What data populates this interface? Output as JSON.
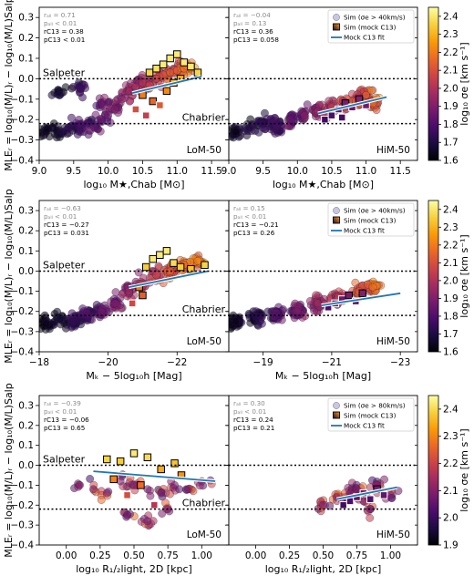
{
  "figure": {
    "colormap": [
      "#000004",
      "#1b0c41",
      "#4a0c6b",
      "#781c6d",
      "#a52c60",
      "#cf4446",
      "#ed6925",
      "#fb9b06",
      "#f7d13d",
      "#fcffa4"
    ],
    "fit_color": "#1f77b4",
    "ylabel": "MLE$_r$ = log$_{10}$(M/L)$_r$ − log$_{10}$(M/L)$_{\\rm Salp}$",
    "ylabel_display": "MLEᵣ = log₁₀(M/L)ᵣ − log₁₀(M/L)Salp",
    "salpeter_label": "Salpeter",
    "chabrier_label": "Chabrier",
    "salpeter_level": 0.0,
    "chabrier_level": -0.22,
    "colorbar_label": "log₁₀ σe [km s⁻¹]"
  },
  "rows": [
    {
      "xlabel": "log₁₀ M★,Chab [M⊙]",
      "xlim": [
        9.0,
        11.75
      ],
      "xticks": [
        "9.0",
        "9.5",
        "10.0",
        "10.5",
        "11.0",
        "11.5"
      ],
      "xtick_values": [
        9.0,
        9.5,
        10.0,
        10.5,
        11.0,
        11.5
      ],
      "ylim": [
        -0.4,
        0.35
      ],
      "yticks": [
        "0.3",
        "0.2",
        "0.1",
        "0.0",
        "−0.1",
        "−0.2",
        "−0.3",
        "−0.4"
      ],
      "ytick_values": [
        0.3,
        0.2,
        0.1,
        0.0,
        -0.1,
        -0.2,
        -0.3,
        -0.4
      ],
      "colorbar": {
        "min": 1.6,
        "max": 2.45,
        "ticks": [
          "2.4",
          "2.3",
          "2.2",
          "2.1",
          "2.0",
          "1.9",
          "1.8",
          "1.7",
          "1.6"
        ],
        "tick_values": [
          2.4,
          2.3,
          2.2,
          2.1,
          2.0,
          1.9,
          1.8,
          1.7,
          1.6
        ]
      },
      "legend": {
        "sim": "Sim (σe > 40km/s)",
        "mock": "Sim (mock C13)",
        "fit": "Mock C13 fit"
      },
      "panels": [
        {
          "name": "LoM-50",
          "stats": [
            "rₐₗₗ = 0.71",
            "pₐₗₗ < 0.01",
            "rC13 = 0.38",
            "pC13 < 0.01"
          ],
          "fit": {
            "x": [
              10.35,
              11.35
            ],
            "y": [
              -0.07,
              0.01
            ]
          }
        },
        {
          "name": "HiM-50",
          "stats": [
            "rₐₗₗ = −0.04",
            "pₐₗₗ = 0.13",
            "rC13 = 0.36",
            "pC13 = 0.058"
          ],
          "fit": {
            "x": [
              10.3,
              11.3
            ],
            "y": [
              -0.17,
              -0.09
            ]
          }
        }
      ]
    },
    {
      "xlabel": "Mₖ − 5log₁₀h [Mag]",
      "xlim": [
        -18.0,
        -23.5
      ],
      "xticks": [
        "−18",
        "−20",
        "−22"
      ],
      "xtick_values": [
        -18,
        -20,
        -22
      ],
      "xticks_right": [
        "−19",
        "−21",
        "−23"
      ],
      "xtick_values_right": [
        -19,
        -21,
        -23
      ],
      "ylim": [
        -0.4,
        0.35
      ],
      "yticks": [
        "0.3",
        "0.2",
        "0.1",
        "0.0",
        "−0.1",
        "−0.2",
        "−0.3",
        "−0.4"
      ],
      "ytick_values": [
        0.3,
        0.2,
        0.1,
        0.0,
        -0.1,
        -0.2,
        -0.3,
        -0.4
      ],
      "colorbar": {
        "min": 1.6,
        "max": 2.45,
        "ticks": [
          "2.4",
          "2.3",
          "2.2",
          "2.1",
          "2.0",
          "1.9",
          "1.8",
          "1.7",
          "1.6"
        ],
        "tick_values": [
          2.4,
          2.3,
          2.2,
          2.1,
          2.0,
          1.9,
          1.8,
          1.7,
          1.6
        ]
      },
      "legend": {
        "sim": "Sim (σe > 40km/s)",
        "mock": "Sim (mock C13)",
        "fit": "Mock C13 fit"
      },
      "panels": [
        {
          "name": "LoM-50",
          "stats": [
            "rₐₗₗ = −0.63",
            "pₐₗₗ < 0.01",
            "rC13 = −0.27",
            "pC13 = 0.031"
          ],
          "fit": {
            "x": [
              -20.6,
              -22.9
            ],
            "y": [
              -0.08,
              0.0
            ]
          }
        },
        {
          "name": "HiM-50",
          "stats": [
            "rₐₗₗ = 0.15",
            "pₐₗₗ < 0.01",
            "rC13 = −0.21",
            "pC13 = 0.26"
          ],
          "fit": {
            "x": [
              -20.7,
              -23.0
            ],
            "y": [
              -0.17,
              -0.11
            ]
          }
        }
      ]
    },
    {
      "xlabel": "log₁₀ R₁/₂light, 2D [kpc]",
      "xlim": [
        -0.2,
        1.2
      ],
      "xticks": [
        "0.00",
        "0.25",
        "0.50",
        "0.75",
        "1.00"
      ],
      "xtick_values": [
        0.0,
        0.25,
        0.5,
        0.75,
        1.0
      ],
      "ylim": [
        -0.4,
        0.35
      ],
      "yticks": [
        "0.3",
        "0.2",
        "0.1",
        "0.0",
        "−0.1",
        "−0.2",
        "−0.3",
        "−0.4"
      ],
      "ytick_values": [
        0.3,
        0.2,
        0.1,
        0.0,
        -0.1,
        -0.2,
        -0.3,
        -0.4
      ],
      "colorbar": {
        "min": 1.9,
        "max": 2.45,
        "ticks": [
          "2.4",
          "2.3",
          "2.2",
          "2.1",
          "2.0",
          "1.9"
        ],
        "tick_values": [
          2.4,
          2.3,
          2.2,
          2.1,
          2.0,
          1.9
        ]
      },
      "legend": {
        "sim": "Sim (σe > 80km/s)",
        "mock": "Sim (mock C13)",
        "fit": "Mock C13 fit"
      },
      "panels": [
        {
          "name": "LoM-50",
          "stats": [
            "rₐₗₗ = −0.39",
            "pₐₗₗ < 0.01",
            "rC13 = −0.06",
            "pC13 = 0.65"
          ],
          "fit": {
            "x": [
              0.2,
              1.1
            ],
            "y": [
              -0.03,
              -0.08
            ]
          }
        },
        {
          "name": "HiM-50",
          "stats": [
            "rₐₗₗ = 0.30",
            "pₐₗₗ < 0.01",
            "rC13 = 0.24",
            "pC13 = 0.21"
          ],
          "fit": {
            "x": [
              0.6,
              1.05
            ],
            "y": [
              -0.17,
              -0.11
            ]
          }
        }
      ]
    }
  ],
  "chart_data": [
    {
      "type": "scatter",
      "panel": "row1-LoM-50",
      "xlabel": "log10 M*,Chab [Msun]",
      "ylabel": "MLEr",
      "xlim": [
        9.0,
        11.75
      ],
      "ylim": [
        -0.4,
        0.35
      ],
      "series": [
        {
          "name": "Sim (σe > 40km/s)",
          "points": [
            [
              9.1,
              -0.26
            ],
            [
              9.2,
              -0.24
            ],
            [
              9.3,
              -0.27
            ],
            [
              9.4,
              -0.25
            ],
            [
              9.5,
              -0.23
            ],
            [
              9.6,
              -0.26
            ],
            [
              9.7,
              -0.22
            ],
            [
              9.8,
              -0.24
            ],
            [
              9.9,
              -0.2
            ],
            [
              10.0,
              -0.18
            ],
            [
              10.1,
              -0.15
            ],
            [
              10.2,
              -0.1
            ],
            [
              10.3,
              -0.06
            ],
            [
              10.4,
              -0.04
            ],
            [
              10.5,
              -0.02
            ],
            [
              10.6,
              -0.03
            ],
            [
              10.7,
              0.0
            ],
            [
              10.8,
              0.02
            ],
            [
              10.9,
              0.03
            ],
            [
              11.0,
              0.04
            ],
            [
              11.1,
              0.05
            ],
            [
              11.2,
              0.06
            ],
            [
              9.3,
              -0.08
            ],
            [
              9.6,
              -0.05
            ],
            [
              9.9,
              -0.12
            ]
          ]
        },
        {
          "name": "Sim (mock C13)",
          "points": [
            [
              10.4,
              -0.15
            ],
            [
              10.5,
              -0.08
            ],
            [
              10.6,
              0.03
            ],
            [
              10.7,
              0.05
            ],
            [
              10.8,
              0.07
            ],
            [
              10.9,
              0.1
            ],
            [
              11.0,
              0.12
            ],
            [
              11.1,
              0.08
            ],
            [
              11.2,
              0.06
            ],
            [
              11.3,
              0.03
            ],
            [
              10.55,
              -0.18
            ],
            [
              10.65,
              -0.11
            ],
            [
              10.75,
              -0.13
            ],
            [
              10.85,
              -0.06
            ],
            [
              10.95,
              -0.02
            ],
            [
              11.05,
              0.0
            ]
          ]
        }
      ]
    },
    {
      "type": "scatter",
      "panel": "row1-HiM-50",
      "xlabel": "log10 M*,Chab [Msun]",
      "ylabel": "MLEr",
      "xlim": [
        9.0,
        11.75
      ],
      "ylim": [
        -0.4,
        0.35
      ],
      "series": [
        {
          "name": "Sim (σe > 40km/s)",
          "points": [
            [
              9.1,
              -0.26
            ],
            [
              9.3,
              -0.24
            ],
            [
              9.5,
              -0.22
            ],
            [
              9.7,
              -0.23
            ],
            [
              9.9,
              -0.2
            ],
            [
              10.1,
              -0.18
            ],
            [
              10.3,
              -0.16
            ],
            [
              10.5,
              -0.14
            ],
            [
              10.7,
              -0.12
            ],
            [
              10.9,
              -0.1
            ],
            [
              11.0,
              -0.08
            ],
            [
              11.1,
              -0.12
            ]
          ]
        },
        {
          "name": "Sim (mock C13)",
          "points": [
            [
              10.4,
              -0.2
            ],
            [
              10.5,
              -0.18
            ],
            [
              10.6,
              -0.15
            ],
            [
              10.7,
              -0.12
            ],
            [
              10.8,
              -0.14
            ],
            [
              10.9,
              -0.1
            ],
            [
              11.0,
              -0.13
            ],
            [
              10.65,
              -0.19
            ]
          ]
        }
      ]
    },
    {
      "type": "scatter",
      "panel": "row2-LoM-50",
      "xlabel": "MK - 5log10h [Mag]",
      "ylabel": "MLEr",
      "xlim": [
        -18.0,
        -23.5
      ],
      "ylim": [
        -0.4,
        0.35
      ],
      "series": [
        {
          "name": "Sim (σe > 40km/s)",
          "points": [
            [
              -18.2,
              -0.26
            ],
            [
              -18.6,
              -0.24
            ],
            [
              -19.0,
              -0.25
            ],
            [
              -19.4,
              -0.22
            ],
            [
              -19.8,
              -0.2
            ],
            [
              -20.2,
              -0.16
            ],
            [
              -20.6,
              -0.1
            ],
            [
              -21.0,
              -0.06
            ],
            [
              -21.4,
              -0.02
            ],
            [
              -21.8,
              0.0
            ],
            [
              -22.2,
              0.03
            ],
            [
              -22.6,
              0.05
            ]
          ]
        },
        {
          "name": "Sim (mock C13)",
          "points": [
            [
              -20.7,
              -0.16
            ],
            [
              -20.9,
              -0.08
            ],
            [
              -21.1,
              0.02
            ],
            [
              -21.3,
              0.06
            ],
            [
              -21.5,
              0.08
            ],
            [
              -21.7,
              0.1
            ],
            [
              -21.9,
              0.04
            ],
            [
              -22.1,
              0.02
            ],
            [
              -22.4,
              0.01
            ],
            [
              -22.8,
              0.03
            ],
            [
              -21.0,
              -0.12
            ]
          ]
        }
      ]
    },
    {
      "type": "scatter",
      "panel": "row2-HiM-50",
      "xlabel": "MK - 5log10h [Mag]",
      "ylabel": "MLEr",
      "xlim": [
        -18.0,
        -23.5
      ],
      "ylim": [
        -0.4,
        0.35
      ],
      "series": [
        {
          "name": "Sim (σe > 40km/s)",
          "points": [
            [
              -18.2,
              -0.25
            ],
            [
              -18.8,
              -0.23
            ],
            [
              -19.4,
              -0.22
            ],
            [
              -20.0,
              -0.2
            ],
            [
              -20.6,
              -0.16
            ],
            [
              -21.2,
              -0.13
            ],
            [
              -21.8,
              -0.1
            ],
            [
              -22.2,
              -0.08
            ]
          ]
        },
        {
          "name": "Sim (mock C13)",
          "points": [
            [
              -20.9,
              -0.18
            ],
            [
              -21.1,
              -0.16
            ],
            [
              -21.3,
              -0.14
            ],
            [
              -21.5,
              -0.12
            ],
            [
              -21.7,
              -0.15
            ],
            [
              -21.9,
              -0.11
            ]
          ]
        }
      ]
    },
    {
      "type": "scatter",
      "panel": "row3-LoM-50",
      "xlabel": "log10 R1/2light,2D [kpc]",
      "ylabel": "MLEr",
      "xlim": [
        -0.2,
        1.2
      ],
      "ylim": [
        -0.4,
        0.35
      ],
      "series": [
        {
          "name": "Sim (σe > 80km/s)",
          "points": [
            [
              0.1,
              -0.1
            ],
            [
              0.2,
              -0.12
            ],
            [
              0.3,
              -0.14
            ],
            [
              0.4,
              -0.08
            ],
            [
              0.5,
              -0.1
            ],
            [
              0.6,
              -0.12
            ],
            [
              0.7,
              -0.14
            ],
            [
              0.8,
              -0.1
            ],
            [
              0.9,
              -0.12
            ],
            [
              1.0,
              -0.08
            ],
            [
              0.45,
              -0.25
            ],
            [
              0.6,
              -0.28
            ],
            [
              0.75,
              -0.22
            ]
          ]
        },
        {
          "name": "Sim (mock C13)",
          "points": [
            [
              0.3,
              0.03
            ],
            [
              0.4,
              0.02
            ],
            [
              0.5,
              0.06
            ],
            [
              0.6,
              0.04
            ],
            [
              0.7,
              -0.02
            ],
            [
              0.8,
              0.01
            ],
            [
              0.45,
              -0.15
            ],
            [
              0.55,
              -0.1
            ],
            [
              0.65,
              -0.2
            ],
            [
              0.35,
              -0.07
            ],
            [
              0.85,
              -0.05
            ]
          ]
        }
      ]
    },
    {
      "type": "scatter",
      "panel": "row3-HiM-50",
      "xlabel": "log10 R1/2light,2D [kpc]",
      "ylabel": "MLEr",
      "xlim": [
        -0.2,
        1.2
      ],
      "ylim": [
        -0.4,
        0.35
      ],
      "series": [
        {
          "name": "Sim (σe > 80km/s)",
          "points": [
            [
              0.5,
              -0.2
            ],
            [
              0.6,
              -0.16
            ],
            [
              0.7,
              -0.14
            ],
            [
              0.75,
              -0.12
            ],
            [
              0.8,
              -0.18
            ],
            [
              0.9,
              -0.1
            ],
            [
              1.0,
              -0.15
            ],
            [
              0.85,
              -0.22
            ]
          ]
        },
        {
          "name": "Sim (mock C13)",
          "points": [
            [
              0.65,
              -0.2
            ],
            [
              0.7,
              -0.18
            ],
            [
              0.75,
              -0.16
            ],
            [
              0.8,
              -0.14
            ],
            [
              0.85,
              -0.17
            ],
            [
              0.9,
              -0.12
            ],
            [
              0.95,
              -0.15
            ]
          ]
        }
      ]
    }
  ]
}
